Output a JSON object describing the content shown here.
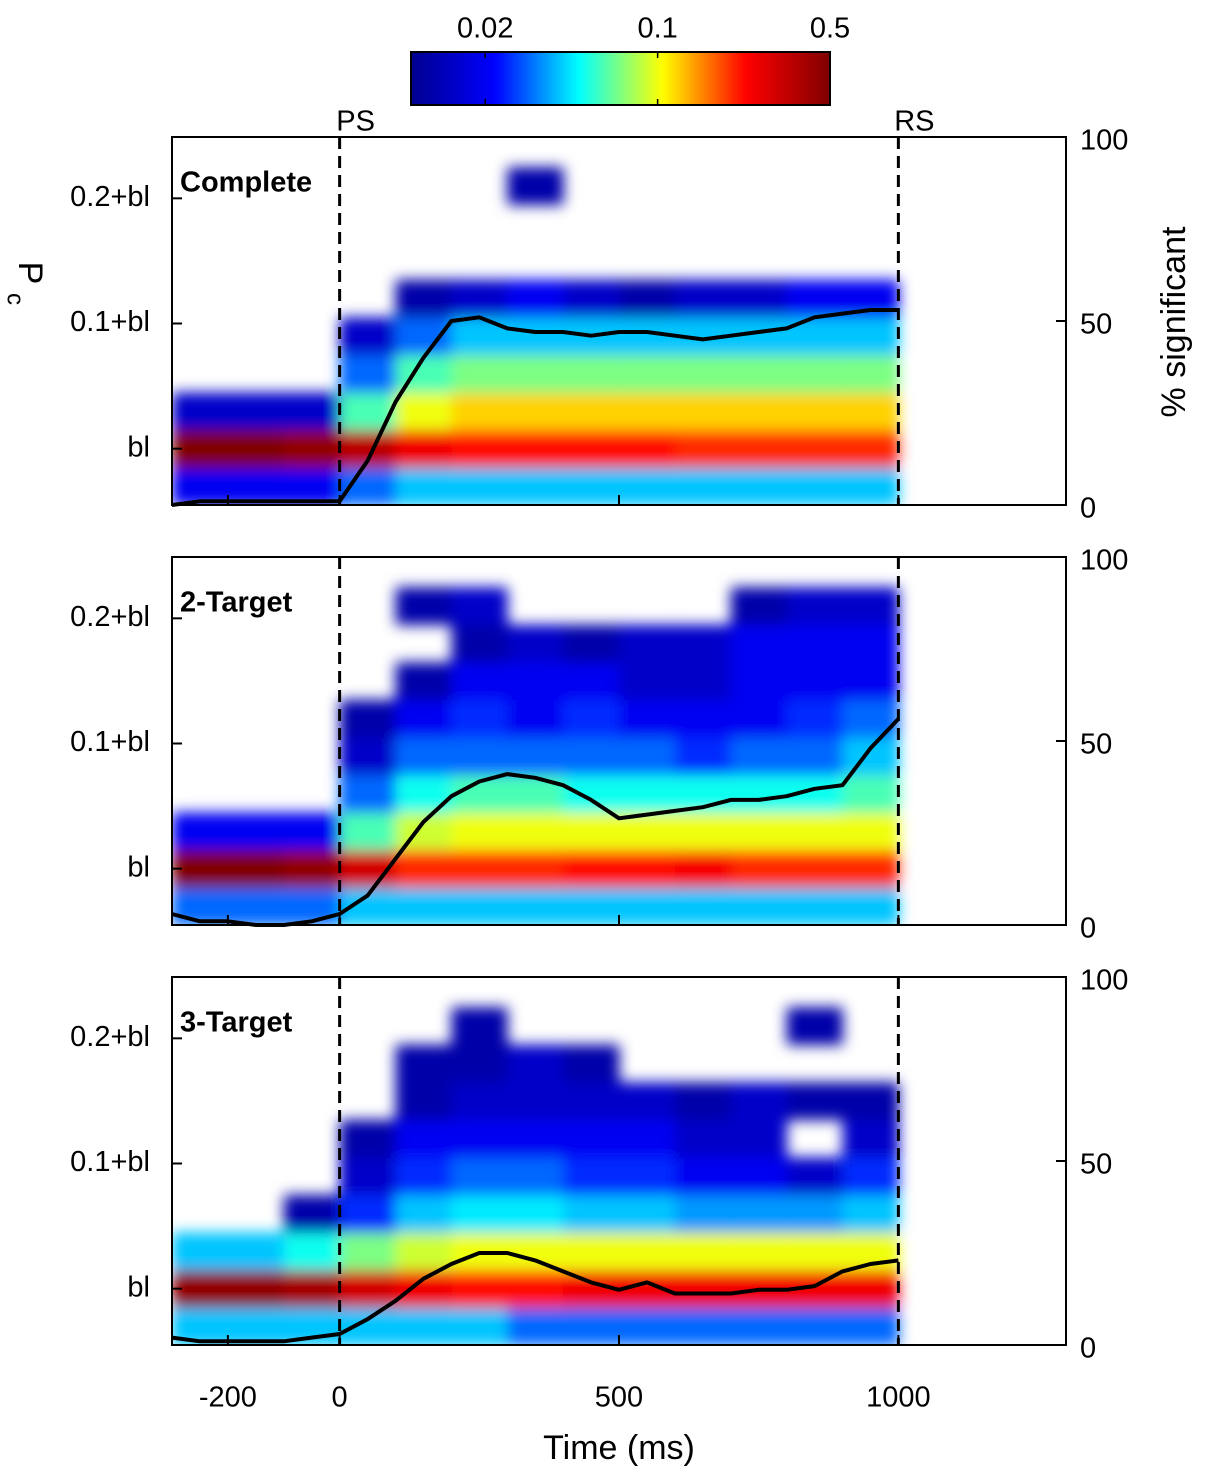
{
  "chart_data": {
    "type": "heatmap",
    "xlabel": "Time (ms)",
    "ylabel": "P",
    "ylabel_sub": "c",
    "y2label": "% significant",
    "xlim": [
      -300,
      1300
    ],
    "xticks": [
      -200,
      0,
      500,
      1000
    ],
    "ylim": [
      -0.045,
      0.249
    ],
    "yticks": [
      {
        "value": 0,
        "label": "bl"
      },
      {
        "value": 0.1,
        "label": "0.1+bl"
      },
      {
        "value": 0.2,
        "label": "0.2+bl"
      }
    ],
    "y2lim": [
      0,
      100
    ],
    "y2ticks": [
      0,
      50,
      100
    ],
    "markers": [
      {
        "x": 0,
        "label": "PS"
      },
      {
        "x": 1000,
        "label": "RS"
      }
    ],
    "colorbar": {
      "clim": [
        0.01,
        0.5
      ],
      "ticks": [
        0.02,
        0.1,
        0.5
      ],
      "log": true,
      "colormap": [
        "#00008f",
        "#0000ff",
        "#00ffff",
        "#ffff00",
        "#ff0000",
        "#800000"
      ]
    },
    "line_color": "#000000",
    "panels": [
      {
        "label": "Complete",
        "x": [
          -250,
          -150,
          -50,
          50,
          150,
          250,
          350,
          450,
          550,
          650,
          750,
          850,
          950
        ],
        "y": [
          -0.03,
          0,
          0.03,
          0.06,
          0.09,
          0.12,
          0.15,
          0.18,
          0.21
        ],
        "z": [
          [
            0.02,
            0.02,
            0.02,
            0.03,
            0.04,
            0.04,
            0.04,
            0.04,
            0.04,
            0.04,
            0.04,
            0.04,
            0.04
          ],
          [
            0.5,
            0.5,
            0.45,
            0.35,
            0.25,
            0.22,
            0.22,
            0.22,
            0.22,
            0.2,
            0.2,
            0.2,
            0.2
          ],
          [
            0.015,
            0.015,
            0.015,
            0.06,
            0.1,
            0.12,
            0.12,
            0.12,
            0.12,
            0.12,
            0.12,
            0.12,
            0.12
          ],
          [
            null,
            null,
            null,
            0.03,
            0.06,
            0.07,
            0.07,
            0.07,
            0.07,
            0.07,
            0.07,
            0.07,
            0.07
          ],
          [
            null,
            null,
            null,
            0.015,
            0.03,
            0.04,
            0.04,
            0.04,
            0.04,
            0.04,
            0.04,
            0.04,
            0.04
          ],
          [
            null,
            null,
            null,
            null,
            0.012,
            0.015,
            0.02,
            0.015,
            0.012,
            0.015,
            0.015,
            0.02,
            0.02
          ],
          [
            null,
            null,
            null,
            null,
            null,
            null,
            null,
            null,
            null,
            null,
            null,
            null,
            null
          ],
          [
            null,
            null,
            null,
            null,
            null,
            null,
            null,
            null,
            null,
            null,
            null,
            null,
            null
          ],
          [
            null,
            null,
            null,
            null,
            null,
            null,
            0.012,
            null,
            null,
            null,
            null,
            null,
            null
          ]
        ],
        "line": {
          "x": [
            -300,
            -250,
            -200,
            -150,
            -100,
            -50,
            0,
            50,
            100,
            150,
            200,
            250,
            300,
            350,
            400,
            450,
            500,
            550,
            600,
            650,
            700,
            750,
            800,
            850,
            900,
            950,
            1000
          ],
          "values": [
            0,
            1,
            1,
            1,
            1,
            1,
            1,
            12,
            28,
            40,
            50,
            51,
            48,
            47,
            47,
            46,
            47,
            47,
            46,
            45,
            46,
            47,
            48,
            51,
            52,
            53,
            53
          ]
        }
      },
      {
        "label": "2-Target",
        "x": [
          -250,
          -150,
          -50,
          50,
          150,
          250,
          350,
          450,
          550,
          650,
          750,
          850,
          950
        ],
        "y": [
          -0.03,
          0,
          0.03,
          0.06,
          0.09,
          0.12,
          0.15,
          0.18,
          0.21
        ],
        "z": [
          [
            0.03,
            0.03,
            0.03,
            0.04,
            0.04,
            0.04,
            0.04,
            0.04,
            0.04,
            0.04,
            0.04,
            0.04,
            0.04
          ],
          [
            0.5,
            0.5,
            0.45,
            0.3,
            0.2,
            0.2,
            0.2,
            0.22,
            0.22,
            0.24,
            0.2,
            0.2,
            0.2
          ],
          [
            0.02,
            0.02,
            0.02,
            0.06,
            0.09,
            0.1,
            0.1,
            0.1,
            0.1,
            0.1,
            0.1,
            0.1,
            0.1
          ],
          [
            null,
            null,
            null,
            0.03,
            0.05,
            0.06,
            0.06,
            0.05,
            0.05,
            0.05,
            0.05,
            0.05,
            0.06
          ],
          [
            null,
            null,
            null,
            0.015,
            0.03,
            0.03,
            0.03,
            0.03,
            0.03,
            0.025,
            0.03,
            0.03,
            0.04
          ],
          [
            null,
            null,
            null,
            0.012,
            0.02,
            0.025,
            0.02,
            0.025,
            0.02,
            0.02,
            0.02,
            0.025,
            0.03
          ],
          [
            null,
            null,
            null,
            null,
            0.012,
            0.02,
            0.02,
            0.02,
            0.015,
            0.015,
            0.02,
            0.02,
            0.02
          ],
          [
            null,
            null,
            null,
            null,
            null,
            0.012,
            0.015,
            0.012,
            0.015,
            0.015,
            0.02,
            0.02,
            0.02
          ],
          [
            null,
            null,
            null,
            null,
            0.012,
            0.015,
            null,
            null,
            null,
            null,
            0.012,
            0.015,
            0.015
          ]
        ],
        "line": {
          "x": [
            -300,
            -250,
            -200,
            -150,
            -100,
            -50,
            0,
            50,
            100,
            150,
            200,
            250,
            300,
            350,
            400,
            450,
            500,
            550,
            600,
            650,
            700,
            750,
            800,
            850,
            900,
            950,
            1000
          ],
          "values": [
            3,
            1,
            1,
            0,
            0,
            1,
            3,
            8,
            18,
            28,
            35,
            39,
            41,
            40,
            38,
            34,
            29,
            30,
            31,
            32,
            34,
            34,
            35,
            37,
            38,
            48,
            56
          ]
        }
      },
      {
        "label": "3-Target",
        "x": [
          -250,
          -150,
          -50,
          50,
          150,
          250,
          350,
          450,
          550,
          650,
          750,
          850,
          950
        ],
        "y": [
          -0.03,
          0,
          0.03,
          0.06,
          0.09,
          0.12,
          0.15,
          0.18,
          0.21
        ],
        "z": [
          [
            0.04,
            0.04,
            0.04,
            0.04,
            0.04,
            0.04,
            0.03,
            0.03,
            0.03,
            0.03,
            0.03,
            0.03,
            0.03
          ],
          [
            0.45,
            0.45,
            0.4,
            0.3,
            0.25,
            0.22,
            0.22,
            0.25,
            0.25,
            0.25,
            0.25,
            0.25,
            0.25
          ],
          [
            0.04,
            0.04,
            0.05,
            0.07,
            0.09,
            0.1,
            0.1,
            0.1,
            0.1,
            0.1,
            0.1,
            0.1,
            0.1
          ],
          [
            null,
            null,
            0.012,
            0.025,
            0.04,
            0.045,
            0.045,
            0.04,
            0.04,
            0.035,
            0.035,
            0.035,
            0.04
          ],
          [
            null,
            null,
            null,
            0.015,
            0.025,
            0.03,
            0.03,
            0.025,
            0.025,
            0.02,
            0.02,
            0.015,
            0.025
          ],
          [
            null,
            null,
            null,
            0.012,
            0.02,
            0.02,
            0.02,
            0.02,
            0.02,
            0.015,
            0.015,
            null,
            0.015
          ],
          [
            null,
            null,
            null,
            null,
            0.012,
            0.015,
            0.015,
            0.015,
            0.015,
            0.012,
            0.015,
            0.012,
            0.012
          ],
          [
            null,
            null,
            null,
            null,
            0.012,
            0.012,
            0.015,
            0.012,
            null,
            null,
            null,
            null,
            null
          ],
          [
            null,
            null,
            null,
            null,
            null,
            0.012,
            null,
            null,
            null,
            null,
            null,
            0.012,
            null
          ]
        ],
        "line": {
          "x": [
            -300,
            -250,
            -200,
            -150,
            -100,
            -50,
            0,
            50,
            100,
            150,
            200,
            250,
            300,
            350,
            400,
            450,
            500,
            550,
            600,
            650,
            700,
            750,
            800,
            850,
            900,
            950,
            1000
          ],
          "values": [
            2,
            1,
            1,
            1,
            1,
            2,
            3,
            7,
            12,
            18,
            22,
            25,
            25,
            23,
            20,
            17,
            15,
            17,
            14,
            14,
            14,
            15,
            15,
            16,
            20,
            22,
            23
          ]
        }
      }
    ]
  }
}
